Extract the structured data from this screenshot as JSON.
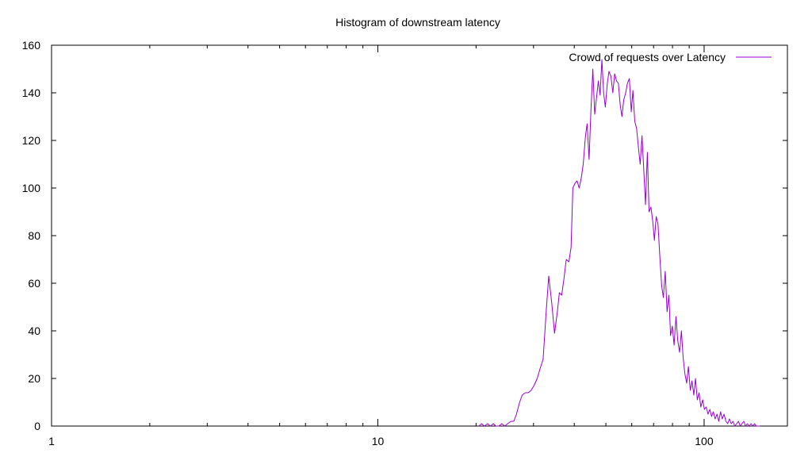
{
  "chart_data": {
    "type": "line",
    "title": "Histogram of downstream latency",
    "xlabel": "",
    "ylabel": "",
    "x_scale": "log",
    "xlim": [
      1,
      180
    ],
    "ylim": [
      0,
      160
    ],
    "grid": false,
    "legend_position": "top-right",
    "x_ticks": [
      1,
      10,
      100
    ],
    "x_tick_labels": [
      "1",
      "10",
      "100"
    ],
    "y_ticks": [
      0,
      20,
      40,
      60,
      80,
      100,
      120,
      140,
      160
    ],
    "y_tick_labels": [
      "0",
      "20",
      "40",
      "60",
      "80",
      "100",
      "120",
      "140",
      "160"
    ],
    "series": [
      {
        "name": "Crowd of requests over Latency",
        "color": "#9400d3",
        "points": [
          [
            20.4,
            0
          ],
          [
            20.8,
            1
          ],
          [
            21.2,
            0
          ],
          [
            21.7,
            1
          ],
          [
            22.1,
            0
          ],
          [
            22.6,
            1
          ],
          [
            23.0,
            0
          ],
          [
            23.5,
            0
          ],
          [
            24.0,
            1
          ],
          [
            24.5,
            0
          ],
          [
            25.0,
            1
          ],
          [
            25.6,
            2
          ],
          [
            26.1,
            2
          ],
          [
            26.6,
            5
          ],
          [
            27.2,
            10
          ],
          [
            27.7,
            13
          ],
          [
            28.3,
            14
          ],
          [
            28.9,
            14
          ],
          [
            29.5,
            15
          ],
          [
            30.1,
            17
          ],
          [
            30.8,
            20
          ],
          [
            31.4,
            24
          ],
          [
            32.1,
            28
          ],
          [
            32.8,
            48
          ],
          [
            33.4,
            63
          ],
          [
            34.1,
            52
          ],
          [
            34.8,
            39
          ],
          [
            35.5,
            48
          ],
          [
            36.0,
            56
          ],
          [
            36.6,
            55
          ],
          [
            37.2,
            62
          ],
          [
            37.8,
            70
          ],
          [
            38.5,
            69
          ],
          [
            39.1,
            75
          ],
          [
            39.6,
            100
          ],
          [
            40.2,
            102
          ],
          [
            40.8,
            103
          ],
          [
            41.4,
            100
          ],
          [
            42.0,
            104
          ],
          [
            42.6,
            110
          ],
          [
            43.3,
            122
          ],
          [
            43.8,
            127
          ],
          [
            44.4,
            112
          ],
          [
            45.0,
            133
          ],
          [
            45.6,
            150
          ],
          [
            46.2,
            131
          ],
          [
            46.8,
            138
          ],
          [
            47.4,
            145
          ],
          [
            48.0,
            139
          ],
          [
            48.6,
            154
          ],
          [
            49.2,
            140
          ],
          [
            49.8,
            134
          ],
          [
            50.5,
            144
          ],
          [
            51.1,
            149
          ],
          [
            51.8,
            147
          ],
          [
            52.5,
            140
          ],
          [
            53.2,
            148
          ],
          [
            53.9,
            145
          ],
          [
            54.6,
            144
          ],
          [
            55.3,
            135
          ],
          [
            56.0,
            130
          ],
          [
            56.7,
            137
          ],
          [
            57.5,
            140
          ],
          [
            58.2,
            144
          ],
          [
            59.0,
            146
          ],
          [
            59.8,
            132
          ],
          [
            60.5,
            141
          ],
          [
            61.3,
            128
          ],
          [
            62.1,
            125
          ],
          [
            62.9,
            117
          ],
          [
            63.7,
            110
          ],
          [
            64.5,
            122
          ],
          [
            65.3,
            108
          ],
          [
            66.1,
            93
          ],
          [
            67.0,
            115
          ],
          [
            67.8,
            90
          ],
          [
            68.7,
            92
          ],
          [
            69.6,
            86
          ],
          [
            70.4,
            78
          ],
          [
            71.3,
            88
          ],
          [
            72.2,
            85
          ],
          [
            73.1,
            72
          ],
          [
            74.1,
            59
          ],
          [
            75.0,
            54
          ],
          [
            76.0,
            65
          ],
          [
            77.0,
            48
          ],
          [
            78.0,
            55
          ],
          [
            78.9,
            38
          ],
          [
            79.9,
            42
          ],
          [
            80.9,
            34
          ],
          [
            82.0,
            46
          ],
          [
            83.0,
            36
          ],
          [
            84.1,
            31
          ],
          [
            85.2,
            40
          ],
          [
            86.2,
            29
          ],
          [
            87.3,
            22
          ],
          [
            88.4,
            18
          ],
          [
            89.5,
            25
          ],
          [
            90.7,
            15
          ],
          [
            91.8,
            19
          ],
          [
            93.0,
            13
          ],
          [
            94.1,
            20
          ],
          [
            95.3,
            11
          ],
          [
            96.5,
            14
          ],
          [
            97.7,
            8
          ],
          [
            99.0,
            11
          ],
          [
            100.2,
            7
          ],
          [
            101.5,
            8
          ],
          [
            102.8,
            5
          ],
          [
            104.1,
            7
          ],
          [
            105.4,
            4
          ],
          [
            106.7,
            6
          ],
          [
            108.1,
            3
          ],
          [
            109.5,
            5
          ],
          [
            110.9,
            2
          ],
          [
            112.3,
            6
          ],
          [
            113.7,
            3
          ],
          [
            115.1,
            5
          ],
          [
            116.6,
            2
          ],
          [
            118.1,
            1
          ],
          [
            119.5,
            3
          ],
          [
            121.1,
            1
          ],
          [
            122.6,
            2
          ],
          [
            124.2,
            0
          ],
          [
            125.8,
            1
          ],
          [
            127.4,
            2
          ],
          [
            129.0,
            0
          ],
          [
            130.6,
            1
          ],
          [
            132.3,
            2
          ],
          [
            134.0,
            0
          ],
          [
            135.7,
            1
          ],
          [
            137.4,
            0
          ],
          [
            139.2,
            1
          ],
          [
            141.0,
            0
          ],
          [
            142.8,
            1
          ],
          [
            144.6,
            0
          ],
          [
            146.4,
            0
          ],
          [
            148.3,
            0
          ]
        ]
      }
    ]
  }
}
